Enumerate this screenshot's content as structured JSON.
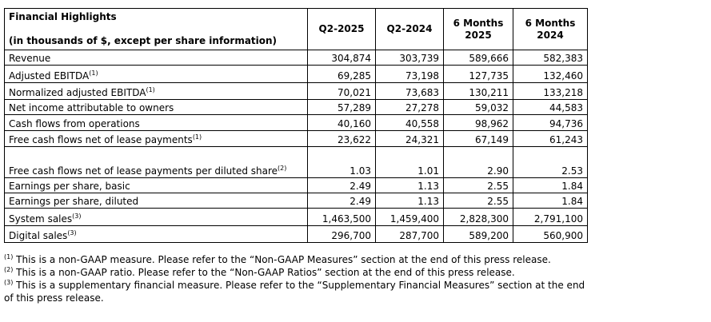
{
  "table": {
    "title": "Financial Highlights",
    "subtitle": "(in thousands of $, except per share information)",
    "columns": [
      [
        "Q2-2025"
      ],
      [
        "Q2-2024"
      ],
      [
        "6 Months",
        "2025"
      ],
      [
        "6 Months",
        "2024"
      ]
    ],
    "rows": [
      {
        "label": "Revenue",
        "values": [
          "304,874",
          "303,739",
          "589,666",
          "582,383"
        ]
      },
      {
        "label": "Adjusted EBITDA",
        "note": "(1)",
        "values": [
          "69,285",
          "73,198",
          "127,735",
          "132,460"
        ]
      },
      {
        "label": "Normalized adjusted EBITDA",
        "note": "(1)",
        "values": [
          "70,021",
          "73,683",
          "130,211",
          "133,218"
        ]
      },
      {
        "label": "Net income attributable to owners",
        "values": [
          "57,289",
          "27,278",
          "59,032",
          "44,583"
        ]
      },
      {
        "label": "Cash flows from operations",
        "values": [
          "40,160",
          "40,558",
          "98,962",
          "94,736"
        ]
      },
      {
        "label": "Free cash flows net of lease payments",
        "note": "(1)",
        "values": [
          "23,622",
          "24,321",
          "67,149",
          "61,243"
        ]
      },
      {
        "label": "Free cash flows net of lease payments per diluted share",
        "note": "(2)",
        "values": [
          "1.03",
          "1.01",
          "2.90",
          "2.53"
        ]
      },
      {
        "label": "Earnings per share, basic",
        "values": [
          "2.49",
          "1.13",
          "2.55",
          "1.84"
        ]
      },
      {
        "label": "Earnings per share, diluted",
        "values": [
          "2.49",
          "1.13",
          "2.55",
          "1.84"
        ]
      },
      {
        "label": "System sales",
        "note": "(3)",
        "values": [
          "1,463,500",
          "1,459,400",
          "2,828,300",
          "2,791,100"
        ]
      },
      {
        "label": "Digital sales",
        "note": "(3)",
        "values": [
          "296,700",
          "287,700",
          "589,200",
          "560,900"
        ]
      }
    ]
  },
  "footnotes": [
    {
      "marker": "(1)",
      "text": "This is a non-GAAP measure. Please refer to the “Non-GAAP Measures” section at the end of this press release."
    },
    {
      "marker": "(2)",
      "text": "This is a non-GAAP ratio. Please refer to the “Non-GAAP Ratios” section at the end of this press release."
    },
    {
      "marker": "(3)",
      "text": "This is a supplementary financial measure. Please refer to the “Supplementary Financial Measures” section at the end of this press release."
    }
  ]
}
